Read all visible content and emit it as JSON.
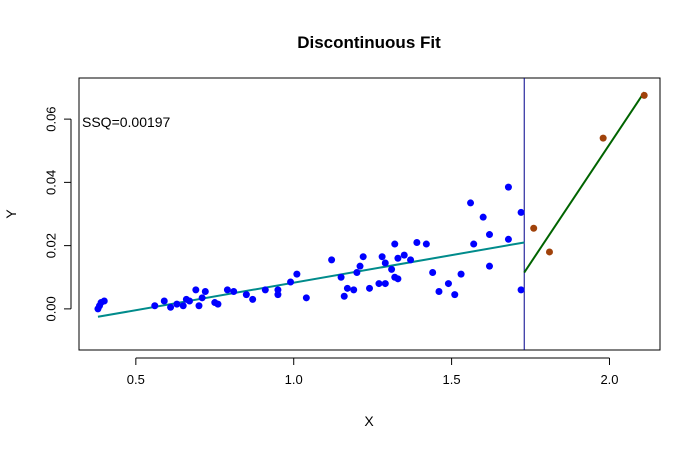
{
  "chart_data": {
    "type": "scatter",
    "title": "Discontinuous Fit",
    "xlabel": "X",
    "ylabel": "Y",
    "xlim": [
      0.32,
      2.16
    ],
    "ylim": [
      -0.013,
      0.073
    ],
    "x_ticks": [
      0.5,
      1.0,
      1.5,
      2.0
    ],
    "x_tick_labels": [
      "0.5",
      "1.0",
      "1.5",
      "2.0"
    ],
    "y_ticks": [
      0.0,
      0.02,
      0.04,
      0.06
    ],
    "y_tick_labels": [
      "0.00",
      "0.02",
      "0.04",
      "0.06"
    ],
    "grid": false,
    "annotation": "SSQ=0.00197",
    "breakpoint_x": 1.73,
    "colors": {
      "left_points": "#0000ff",
      "right_points": "#a0420a",
      "left_fit": "#008b8b",
      "right_fit": "#006400",
      "breakpoint_line": "#00008b",
      "axis": "#000000"
    },
    "series": [
      {
        "points": [
          [
            0.38,
            0.0
          ],
          [
            0.385,
            0.001
          ],
          [
            0.39,
            0.002
          ],
          [
            0.4,
            0.0025
          ],
          [
            0.56,
            0.001
          ],
          [
            0.59,
            0.0025
          ],
          [
            0.61,
            0.0005
          ],
          [
            0.63,
            0.0015
          ],
          [
            0.65,
            0.001
          ],
          [
            0.66,
            0.003
          ],
          [
            0.67,
            0.0025
          ],
          [
            0.69,
            0.006
          ],
          [
            0.7,
            0.001
          ],
          [
            0.71,
            0.0035
          ],
          [
            0.72,
            0.0055
          ],
          [
            0.75,
            0.002
          ],
          [
            0.76,
            0.0015
          ],
          [
            0.79,
            0.006
          ],
          [
            0.81,
            0.0055
          ],
          [
            0.85,
            0.0045
          ],
          [
            0.87,
            0.003
          ],
          [
            0.91,
            0.006
          ],
          [
            0.95,
            0.0045
          ],
          [
            0.95,
            0.006
          ],
          [
            0.99,
            0.0085
          ],
          [
            1.01,
            0.011
          ],
          [
            1.04,
            0.0035
          ],
          [
            1.12,
            0.0155
          ],
          [
            1.15,
            0.01
          ],
          [
            1.16,
            0.004
          ],
          [
            1.17,
            0.0065
          ],
          [
            1.19,
            0.006
          ],
          [
            1.2,
            0.0115
          ],
          [
            1.21,
            0.0135
          ],
          [
            1.22,
            0.0165
          ],
          [
            1.24,
            0.0065
          ],
          [
            1.27,
            0.008
          ],
          [
            1.28,
            0.0165
          ],
          [
            1.29,
            0.0145
          ],
          [
            1.29,
            0.008
          ],
          [
            1.31,
            0.0125
          ],
          [
            1.32,
            0.01
          ],
          [
            1.32,
            0.0205
          ],
          [
            1.33,
            0.016
          ],
          [
            1.33,
            0.0095
          ],
          [
            1.35,
            0.017
          ],
          [
            1.37,
            0.0155
          ],
          [
            1.39,
            0.021
          ],
          [
            1.42,
            0.0205
          ],
          [
            1.44,
            0.0115
          ],
          [
            1.46,
            0.0055
          ],
          [
            1.49,
            0.008
          ],
          [
            1.51,
            0.0045
          ],
          [
            1.53,
            0.011
          ],
          [
            1.56,
            0.0335
          ],
          [
            1.57,
            0.0205
          ],
          [
            1.6,
            0.029
          ],
          [
            1.62,
            0.0135
          ],
          [
            1.62,
            0.0235
          ],
          [
            1.68,
            0.022
          ],
          [
            1.68,
            0.0385
          ],
          [
            1.72,
            0.0305
          ],
          [
            1.72,
            0.006
          ]
        ]
      },
      {
        "points": [
          [
            1.76,
            0.0255
          ],
          [
            1.81,
            0.018
          ],
          [
            1.98,
            0.054
          ],
          [
            2.11,
            0.0675
          ]
        ]
      }
    ],
    "fit_lines": [
      {
        "segment": [
          [
            0.38,
            -0.0025
          ],
          [
            1.73,
            0.021
          ]
        ]
      },
      {
        "segment": [
          [
            1.73,
            0.0115
          ],
          [
            2.11,
            0.0685
          ]
        ]
      }
    ]
  }
}
